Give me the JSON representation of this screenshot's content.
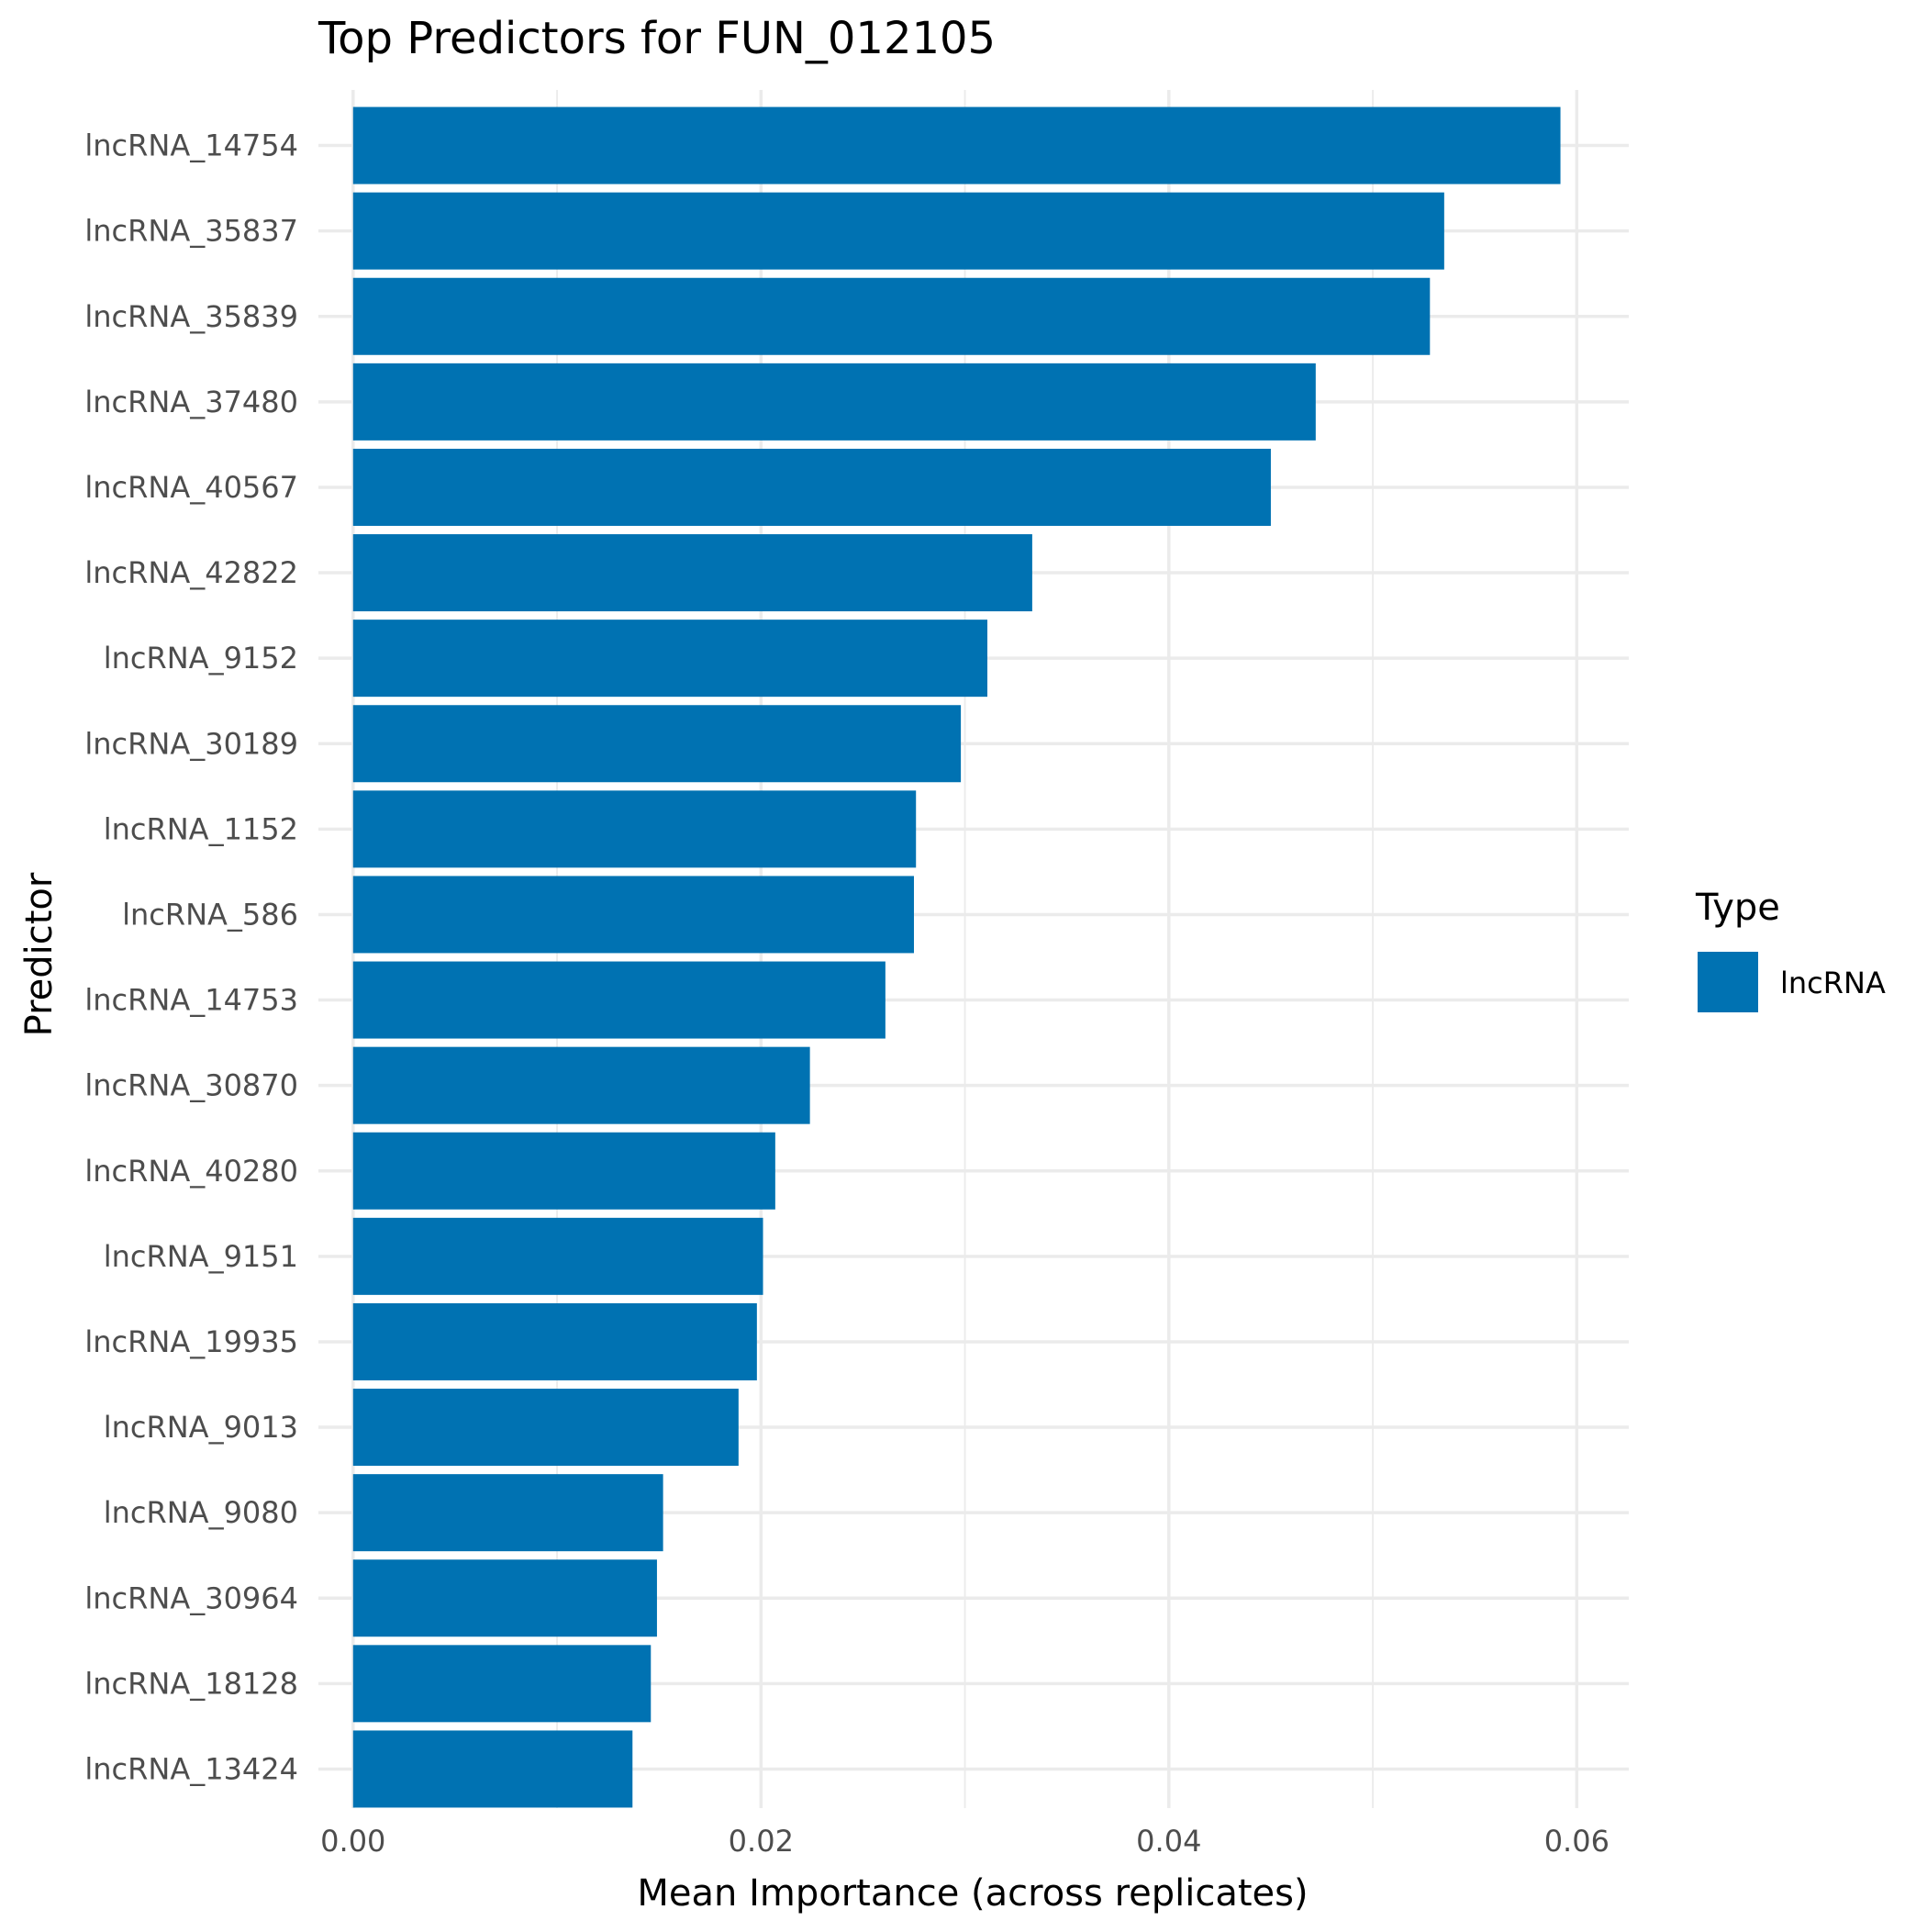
{
  "chart_data": {
    "type": "bar",
    "orientation": "horizontal",
    "title": "Top Predictors for FUN_012105",
    "xlabel": "Mean Importance (across replicates)",
    "ylabel": "Predictor",
    "xlim": [
      0,
      0.062
    ],
    "x_ticks": [
      0.0,
      0.02,
      0.04,
      0.06
    ],
    "x_tick_labels": [
      "0.00",
      "0.02",
      "0.04",
      "0.06"
    ],
    "grid": true,
    "legend": {
      "title": "Type",
      "position": "right",
      "entries": [
        {
          "label": "lncRNA",
          "color": "#0072b2"
        }
      ]
    },
    "bar_color": "#0072b2",
    "categories": [
      "lncRNA_14754",
      "lncRNA_35837",
      "lncRNA_35839",
      "lncRNA_37480",
      "lncRNA_40567",
      "lncRNA_42822",
      "lncRNA_9152",
      "lncRNA_30189",
      "lncRNA_1152",
      "lncRNA_586",
      "lncRNA_14753",
      "lncRNA_30870",
      "lncRNA_40280",
      "lncRNA_9151",
      "lncRNA_19935",
      "lncRNA_9013",
      "lncRNA_9080",
      "lncRNA_30964",
      "lncRNA_18128",
      "lncRNA_13424"
    ],
    "values": [
      0.0592,
      0.0535,
      0.0528,
      0.0472,
      0.045,
      0.0333,
      0.0311,
      0.0298,
      0.0276,
      0.0275,
      0.0261,
      0.0224,
      0.0207,
      0.0201,
      0.0198,
      0.0189,
      0.0152,
      0.0149,
      0.0146,
      0.0137
    ]
  }
}
